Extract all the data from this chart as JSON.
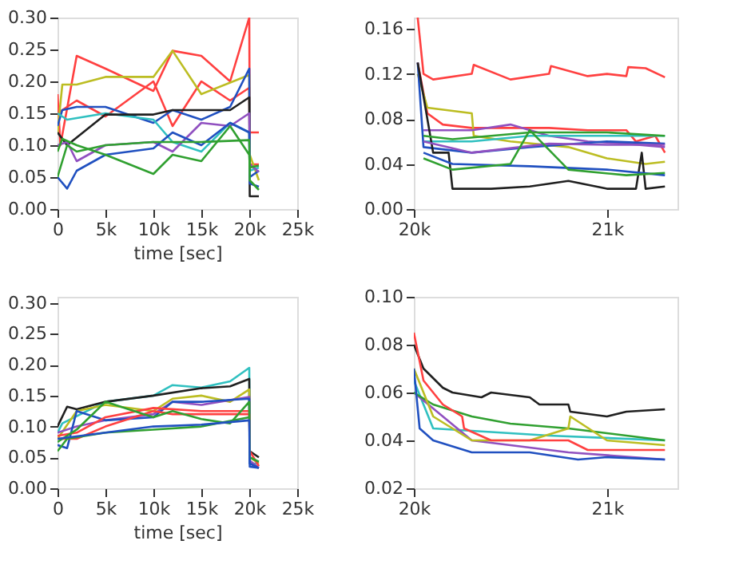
{
  "chart_data": [
    {
      "type": "line",
      "xlabel": "time [sec]",
      "xlim": [
        0,
        25000
      ],
      "ylim": [
        0,
        0.3
      ],
      "xticks": [
        0,
        {
          "value": 5000,
          "label": "5k"
        },
        {
          "value": 10000,
          "label": "10k"
        },
        {
          "value": 15000,
          "label": "15k"
        },
        {
          "value": 20000,
          "label": "20k"
        },
        {
          "value": 25000,
          "label": "25k"
        }
      ],
      "yticks": [
        {
          "value": 0,
          "label": "0.00"
        },
        {
          "value": 0.05,
          "label": "0.05"
        },
        {
          "value": 0.1,
          "label": "0.10"
        },
        {
          "value": 0.15,
          "label": "0.15"
        },
        {
          "value": 0.2,
          "label": "0.20"
        },
        {
          "value": 0.25,
          "label": "0.25"
        },
        {
          "value": 0.3,
          "label": "0.30"
        }
      ],
      "series": [
        {
          "color": "#ff4040",
          "x": [
            0,
            300,
            2000,
            5000,
            10000,
            12000,
            15000,
            18000,
            20000,
            20050,
            21000
          ],
          "values": [
            0.18,
            0.1,
            0.24,
            0.22,
            0.185,
            0.248,
            0.24,
            0.2,
            0.3,
            0.12,
            0.12
          ]
        },
        {
          "color": "#ff4040",
          "x": [
            0,
            2000,
            5000,
            10000,
            12000,
            15000,
            18000,
            20000,
            20050,
            21000
          ],
          "values": [
            0.15,
            0.17,
            0.145,
            0.2,
            0.13,
            0.2,
            0.17,
            0.19,
            0.07,
            0.07
          ]
        },
        {
          "color": "#bcbd22",
          "x": [
            0,
            500,
            2000,
            5000,
            10000,
            12000,
            15000,
            20000,
            20050,
            21000
          ],
          "values": [
            0.12,
            0.195,
            0.195,
            0.207,
            0.207,
            0.248,
            0.18,
            0.21,
            0.085,
            0.045
          ]
        },
        {
          "color": "#2050c0",
          "x": [
            0,
            500,
            2000,
            5000,
            10000,
            12000,
            15000,
            18000,
            20000,
            20050,
            21000
          ],
          "values": [
            0.13,
            0.155,
            0.16,
            0.16,
            0.135,
            0.155,
            0.14,
            0.16,
            0.22,
            0.05,
            0.06
          ]
        },
        {
          "color": "#30c0c0",
          "x": [
            0,
            1000,
            5000,
            10000,
            12000,
            15000,
            18000,
            20000,
            20050,
            21000
          ],
          "values": [
            0.15,
            0.14,
            0.15,
            0.14,
            0.105,
            0.09,
            0.135,
            0.12,
            0.06,
            0.065
          ]
        },
        {
          "color": "#202020",
          "x": [
            0,
            1000,
            5000,
            10000,
            12000,
            15000,
            18000,
            20000,
            20050,
            21000
          ],
          "values": [
            0.12,
            0.1,
            0.148,
            0.148,
            0.155,
            0.155,
            0.155,
            0.175,
            0.02,
            0.02
          ]
        },
        {
          "color": "#9050c0",
          "x": [
            0,
            1000,
            2000,
            5000,
            10000,
            12000,
            15000,
            18000,
            20000,
            20050,
            21000
          ],
          "values": [
            0.1,
            0.105,
            0.075,
            0.1,
            0.105,
            0.09,
            0.135,
            0.13,
            0.15,
            0.07,
            0.058
          ]
        },
        {
          "color": "#2050c0",
          "x": [
            0,
            1000,
            2000,
            5000,
            10000,
            12000,
            15000,
            18000,
            20000,
            20050,
            21000
          ],
          "values": [
            0.05,
            0.032,
            0.06,
            0.085,
            0.095,
            0.12,
            0.1,
            0.135,
            0.12,
            0.04,
            0.035
          ]
        },
        {
          "color": "#30a030",
          "x": [
            0,
            500,
            2000,
            5000,
            10000,
            12000,
            15000,
            18000,
            20000,
            20050,
            21000
          ],
          "values": [
            0.09,
            0.11,
            0.1,
            0.085,
            0.055,
            0.085,
            0.075,
            0.13,
            0.085,
            0.065,
            0.068
          ]
        },
        {
          "color": "#30a030",
          "x": [
            0,
            1000,
            2000,
            5000,
            10000,
            15000,
            20000,
            20050,
            21000
          ],
          "values": [
            0.05,
            0.1,
            0.09,
            0.1,
            0.105,
            0.105,
            0.108,
            0.045,
            0.03
          ]
        }
      ]
    },
    {
      "type": "line",
      "xlim": [
        20000,
        21365
      ],
      "ylim": [
        0,
        0.17
      ],
      "xticks": [
        {
          "value": 20000,
          "label": "20k"
        },
        {
          "value": 21000,
          "label": "21k"
        }
      ],
      "yticks": [
        {
          "value": 0,
          "label": "0.00"
        },
        {
          "value": 0.04,
          "label": "0.04"
        },
        {
          "value": 0.08,
          "label": "0.08"
        },
        {
          "value": 0.12,
          "label": "0.12"
        },
        {
          "value": 0.16,
          "label": "0.16"
        }
      ],
      "series": [
        {
          "color": "#ff4040",
          "x": [
            20020,
            20050,
            20100,
            20300,
            20310,
            20500,
            20700,
            20710,
            20900,
            21000,
            21100,
            21110,
            21200,
            21300
          ],
          "values": [
            0.17,
            0.12,
            0.115,
            0.12,
            0.128,
            0.115,
            0.12,
            0.127,
            0.118,
            0.12,
            0.118,
            0.126,
            0.125,
            0.117
          ]
        },
        {
          "color": "#ff4040",
          "x": [
            20020,
            20070,
            20150,
            20300,
            20500,
            20700,
            20900,
            21100,
            21150,
            21250,
            21300
          ],
          "values": [
            0.13,
            0.085,
            0.075,
            0.072,
            0.072,
            0.072,
            0.07,
            0.07,
            0.06,
            0.065,
            0.05
          ]
        },
        {
          "color": "#bcbd22",
          "x": [
            20020,
            20070,
            20300,
            20310,
            20500,
            20800,
            21000,
            21200,
            21300
          ],
          "values": [
            0.12,
            0.09,
            0.085,
            0.065,
            0.06,
            0.055,
            0.045,
            0.04,
            0.042
          ]
        },
        {
          "color": "#9050c0",
          "x": [
            20050,
            20300,
            20500,
            20700,
            20900,
            21100,
            21300
          ],
          "values": [
            0.07,
            0.07,
            0.075,
            0.065,
            0.06,
            0.058,
            0.055
          ]
        },
        {
          "color": "#30c0c0",
          "x": [
            20050,
            20300,
            20600,
            21000,
            21300
          ],
          "values": [
            0.06,
            0.06,
            0.065,
            0.065,
            0.065
          ]
        },
        {
          "color": "#2050c0",
          "x": [
            20020,
            20050,
            20300,
            20600,
            21000,
            21300
          ],
          "values": [
            0.13,
            0.055,
            0.05,
            0.055,
            0.06,
            0.058
          ]
        },
        {
          "color": "#202020",
          "x": [
            20020,
            20100,
            20180,
            20200,
            20400,
            20600,
            20800,
            21000,
            21150,
            21180,
            21200,
            21300
          ],
          "values": [
            0.13,
            0.05,
            0.05,
            0.018,
            0.018,
            0.02,
            0.025,
            0.018,
            0.018,
            0.05,
            0.018,
            0.02
          ]
        },
        {
          "color": "#9050c0",
          "x": [
            20050,
            20300,
            20700,
            21000,
            21300
          ],
          "values": [
            0.06,
            0.05,
            0.058,
            0.057,
            0.057
          ]
        },
        {
          "color": "#2050c0",
          "x": [
            20050,
            20200,
            20600,
            21000,
            21300
          ],
          "values": [
            0.05,
            0.04,
            0.038,
            0.035,
            0.03
          ]
        },
        {
          "color": "#30a030",
          "x": [
            20050,
            20200,
            20600,
            21000,
            21300
          ],
          "values": [
            0.065,
            0.062,
            0.068,
            0.068,
            0.065
          ]
        },
        {
          "color": "#30a030",
          "x": [
            20050,
            20200,
            20500,
            20600,
            20800,
            21100,
            21300
          ],
          "values": [
            0.045,
            0.035,
            0.04,
            0.07,
            0.035,
            0.03,
            0.032
          ]
        }
      ]
    },
    {
      "type": "line",
      "xlabel": "time [sec]",
      "xlim": [
        0,
        25000
      ],
      "ylim": [
        0,
        0.31
      ],
      "xticks": [
        0,
        {
          "value": 5000,
          "label": "5k"
        },
        {
          "value": 10000,
          "label": "10k"
        },
        {
          "value": 15000,
          "label": "15k"
        },
        {
          "value": 20000,
          "label": "20k"
        },
        {
          "value": 25000,
          "label": "25k"
        }
      ],
      "yticks": [
        {
          "value": 0,
          "label": "0.00"
        },
        {
          "value": 0.05,
          "label": "0.05"
        },
        {
          "value": 0.1,
          "label": "0.10"
        },
        {
          "value": 0.15,
          "label": "0.15"
        },
        {
          "value": 0.2,
          "label": "0.20"
        },
        {
          "value": 0.25,
          "label": "0.25"
        },
        {
          "value": 0.3,
          "label": "0.30"
        }
      ],
      "series": [
        {
          "color": "#30c0c0",
          "x": [
            0,
            500,
            5000,
            10000,
            12000,
            15000,
            18000,
            20000,
            20050,
            21000
          ],
          "values": [
            0.09,
            0.105,
            0.14,
            0.15,
            0.167,
            0.163,
            0.173,
            0.195,
            0.04,
            0.04
          ]
        },
        {
          "color": "#202020",
          "x": [
            0,
            1000,
            2000,
            5000,
            10000,
            15000,
            18000,
            20000,
            20050,
            21000
          ],
          "values": [
            0.1,
            0.132,
            0.128,
            0.14,
            0.15,
            0.162,
            0.165,
            0.177,
            0.06,
            0.05
          ]
        },
        {
          "color": "#bcbd22",
          "x": [
            0,
            2000,
            5000,
            10000,
            12000,
            15000,
            18000,
            20000,
            20050,
            21000
          ],
          "values": [
            0.08,
            0.125,
            0.135,
            0.125,
            0.145,
            0.15,
            0.14,
            0.16,
            0.05,
            0.04
          ]
        },
        {
          "color": "#9050c0",
          "x": [
            0,
            2000,
            5000,
            10000,
            12000,
            15000,
            20000,
            20050,
            21000
          ],
          "values": [
            0.09,
            0.1,
            0.11,
            0.12,
            0.14,
            0.135,
            0.148,
            0.045,
            0.033
          ]
        },
        {
          "color": "#2050c0",
          "x": [
            0,
            1000,
            2000,
            5000,
            10000,
            12000,
            15000,
            20000,
            20050,
            21000
          ],
          "values": [
            0.07,
            0.065,
            0.125,
            0.11,
            0.115,
            0.14,
            0.14,
            0.145,
            0.04,
            0.033
          ]
        },
        {
          "color": "#ff4040",
          "x": [
            0,
            2000,
            5000,
            10000,
            12000,
            15000,
            18000,
            20000,
            20050,
            21000
          ],
          "values": [
            0.08,
            0.08,
            0.1,
            0.125,
            0.12,
            0.12,
            0.12,
            0.12,
            0.06,
            0.036
          ]
        },
        {
          "color": "#ff4040",
          "x": [
            0,
            2000,
            5000,
            10000,
            15000,
            20000
          ],
          "values": [
            0.085,
            0.09,
            0.115,
            0.13,
            0.125,
            0.125
          ]
        },
        {
          "color": "#30a030",
          "x": [
            0,
            2000,
            5000,
            10000,
            12000,
            15000,
            18000,
            20000,
            20050,
            21000
          ],
          "values": [
            0.075,
            0.095,
            0.14,
            0.115,
            0.125,
            0.112,
            0.105,
            0.14,
            0.05,
            0.043
          ]
        },
        {
          "color": "#30a030",
          "x": [
            0,
            1000,
            5000,
            10000,
            15000,
            20000
          ],
          "values": [
            0.06,
            0.08,
            0.09,
            0.095,
            0.1,
            0.115
          ]
        },
        {
          "color": "#2050c0",
          "x": [
            0,
            5000,
            10000,
            15000,
            20000,
            20050,
            21000
          ],
          "values": [
            0.08,
            0.09,
            0.1,
            0.103,
            0.11,
            0.035,
            0.033
          ]
        }
      ]
    },
    {
      "type": "line",
      "xlim": [
        20000,
        21365
      ],
      "ylim": [
        0.02,
        0.1
      ],
      "xticks": [
        {
          "value": 20000,
          "label": "20k"
        },
        {
          "value": 21000,
          "label": "21k"
        }
      ],
      "yticks": [
        {
          "value": 0.02,
          "label": "0.02"
        },
        {
          "value": 0.04,
          "label": "0.04"
        },
        {
          "value": 0.06,
          "label": "0.06"
        },
        {
          "value": 0.08,
          "label": "0.08"
        },
        {
          "value": 0.1,
          "label": "0.10"
        }
      ],
      "series": [
        {
          "color": "#30c0c0",
          "x": [
            20000,
            20100,
            20700,
            21300
          ],
          "values": [
            0.065,
            0.045,
            0.042,
            0.04
          ]
        },
        {
          "color": "#9050c0",
          "x": [
            20000,
            20300,
            20800,
            21300
          ],
          "values": [
            0.06,
            0.04,
            0.035,
            0.032
          ]
        },
        {
          "color": "#30a030",
          "x": [
            20000,
            20100,
            20300,
            20500,
            20800,
            21000,
            21300
          ],
          "values": [
            0.06,
            0.055,
            0.05,
            0.047,
            0.045,
            0.043,
            0.04
          ]
        },
        {
          "color": "#bcbd22",
          "x": [
            20000,
            20100,
            20300,
            20600,
            20800,
            20810,
            21000,
            21300
          ],
          "values": [
            0.07,
            0.05,
            0.04,
            0.04,
            0.045,
            0.05,
            0.04,
            0.038
          ]
        },
        {
          "color": "#202020",
          "x": [
            20000,
            20050,
            20150,
            20200,
            20350,
            20400,
            20600,
            20650,
            20800,
            20810,
            21000,
            21100,
            21300
          ],
          "values": [
            0.08,
            0.07,
            0.062,
            0.06,
            0.058,
            0.06,
            0.058,
            0.055,
            0.055,
            0.052,
            0.05,
            0.052,
            0.053
          ]
        },
        {
          "color": "#2050c0",
          "x": [
            20000,
            20030,
            20100,
            20300,
            20600,
            20850,
            21000,
            21300
          ],
          "values": [
            0.07,
            0.045,
            0.04,
            0.035,
            0.035,
            0.032,
            0.033,
            0.032
          ]
        },
        {
          "color": "#ff4040",
          "x": [
            20000,
            20050,
            20150,
            20250,
            20260,
            20400,
            20600,
            20800,
            20900,
            21100,
            21300
          ],
          "values": [
            0.085,
            0.065,
            0.055,
            0.05,
            0.045,
            0.04,
            0.04,
            0.04,
            0.036,
            0.036,
            0.036
          ]
        }
      ]
    }
  ]
}
